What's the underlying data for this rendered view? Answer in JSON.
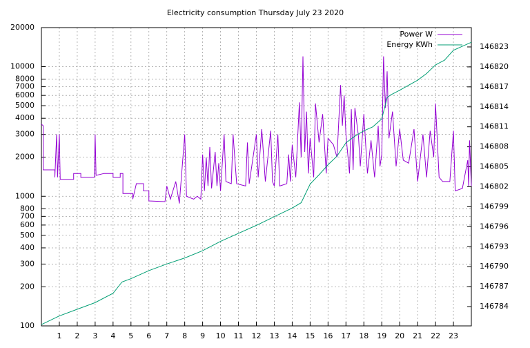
{
  "chart_data": {
    "type": "line",
    "title": "Electricity consumption Thursday July 23 2020",
    "xlim": [
      0,
      24
    ],
    "xticks": [
      1,
      2,
      3,
      4,
      5,
      6,
      7,
      8,
      9,
      10,
      11,
      12,
      13,
      14,
      15,
      16,
      17,
      18,
      19,
      20,
      21,
      22,
      23
    ],
    "ylim": [
      100,
      20000
    ],
    "yscale": "log",
    "yticks": [
      100,
      200,
      300,
      400,
      500,
      600,
      700,
      800,
      1000,
      2000,
      3000,
      4000,
      5000,
      6000,
      7000,
      8000,
      10000,
      20000
    ],
    "y2lim": [
      146781.1,
      146825.9
    ],
    "y2ticks": [
      146784,
      146787,
      146790,
      146793,
      146796,
      146799,
      146802,
      146805,
      146808,
      146811,
      146814,
      146817,
      146820,
      146823
    ],
    "grid": true,
    "legend": "top-right",
    "series": [
      {
        "name": "Power W",
        "color": "#9400d3",
        "axis": "y",
        "x": [
          0,
          0.1,
          0.1,
          0.75,
          0.75,
          0.85,
          0.9,
          1.0,
          1.05,
          1.8,
          1.8,
          2.2,
          2.2,
          2.95,
          3.0,
          3.05,
          3.5,
          4.0,
          4.0,
          4.4,
          4.4,
          4.55,
          4.55,
          5.1,
          5.1,
          5.3,
          5.7,
          5.7,
          6.0,
          6.0,
          6.9,
          7.0,
          7.2,
          7.5,
          7.7,
          8.0,
          8.1,
          8.5,
          8.7,
          8.9,
          9.0,
          9.1,
          9.2,
          9.3,
          9.4,
          9.5,
          9.7,
          9.8,
          9.9,
          10.0,
          10.2,
          10.3,
          10.6,
          10.7,
          10.9,
          11.4,
          11.5,
          11.6,
          12.0,
          12.1,
          12.3,
          12.5,
          12.8,
          12.9,
          13.0,
          13.2,
          13.3,
          13.7,
          13.8,
          13.9,
          14.0,
          14.2,
          14.4,
          14.5,
          14.6,
          14.7,
          14.8,
          14.9,
          15.0,
          15.2,
          15.3,
          15.5,
          15.7,
          15.9,
          16.0,
          16.3,
          16.5,
          16.7,
          16.8,
          16.9,
          17.0,
          17.2,
          17.3,
          17.4,
          17.5,
          17.7,
          17.8,
          18.0,
          18.2,
          18.4,
          18.6,
          18.8,
          18.9,
          19.0,
          19.1,
          19.2,
          19.3,
          19.4,
          19.6,
          19.8,
          20.0,
          20.2,
          20.5,
          20.8,
          21.0,
          21.3,
          21.5,
          21.7,
          21.9,
          22.0,
          22.2,
          22.4,
          22.8,
          23.0,
          23.1,
          23.5,
          23.8,
          23.85,
          23.9,
          24.0
        ],
        "values": [
          3600,
          3500,
          1600,
          1600,
          1400,
          3000,
          1400,
          3000,
          1350,
          1350,
          1500,
          1500,
          1400,
          1400,
          3000,
          1450,
          1500,
          1500,
          1400,
          1400,
          1500,
          1500,
          1050,
          1050,
          950,
          1250,
          1250,
          1100,
          1100,
          920,
          910,
          1200,
          950,
          1300,
          880,
          3000,
          1000,
          950,
          1000,
          950,
          2100,
          1100,
          2000,
          1200,
          2400,
          1150,
          2200,
          1200,
          1800,
          1100,
          3000,
          1300,
          1250,
          3000,
          1250,
          1200,
          2600,
          1250,
          3000,
          1400,
          3300,
          1300,
          3200,
          1300,
          1200,
          3000,
          1200,
          1250,
          2100,
          1300,
          2500,
          1400,
          5300,
          2000,
          12000,
          2200,
          4500,
          1500,
          2800,
          1400,
          5200,
          2600,
          4300,
          1500,
          2800,
          2500,
          2000,
          7200,
          3500,
          6000,
          3000,
          1500,
          4700,
          1600,
          4800,
          2900,
          1700,
          4300,
          1500,
          2700,
          1400,
          3500,
          1700,
          2100,
          12000,
          4800,
          9200,
          2800,
          4500,
          1700,
          3300,
          1900,
          1800,
          3300,
          1300,
          3000,
          1400,
          3200,
          2000,
          5200,
          1400,
          1300,
          1300,
          3200,
          1100,
          1150,
          1900,
          1200,
          2700,
          1200
        ]
      },
      {
        "name": "Energy KWh",
        "color": "#009e73",
        "axis": "y2",
        "x": [
          0,
          1,
          2,
          3,
          4,
          4.5,
          5,
          6,
          7,
          8,
          9,
          10,
          11,
          12,
          13,
          14,
          14.5,
          15,
          15.5,
          16,
          16.5,
          17,
          17.5,
          18,
          18.5,
          19,
          19.3,
          19.5,
          20,
          21,
          21.5,
          22,
          22.5,
          23,
          24
        ],
        "values": [
          146781.3,
          146782.6,
          146783.6,
          146784.6,
          146786,
          146787.7,
          146788.2,
          146789.4,
          146790.4,
          146791.3,
          146792.4,
          146793.8,
          146795.0,
          146796.2,
          146797.5,
          146798.8,
          146799.6,
          146802.4,
          146803.8,
          146805.3,
          146806.6,
          146808.6,
          146809.6,
          146810.4,
          146811,
          146812.2,
          146815.4,
          146815.8,
          146816.5,
          146818,
          146819,
          146820.3,
          146821,
          146822.5,
          146823.7
        ]
      }
    ]
  }
}
